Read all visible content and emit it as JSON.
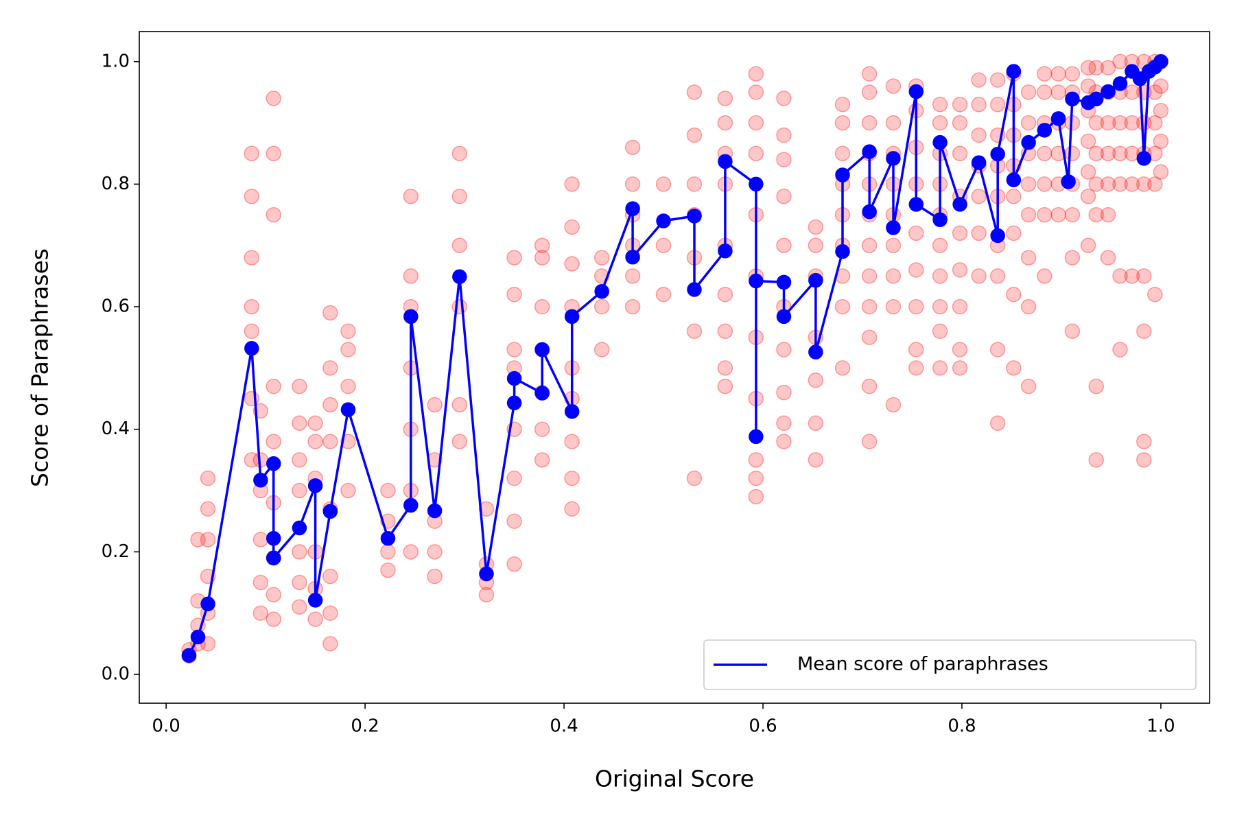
{
  "chart_data": {
    "type": "scatter",
    "x_label": "Original Score",
    "y_label": "Score of Paraphrases",
    "xlim": [
      -0.027,
      1.049
    ],
    "ylim": [
      -0.047,
      1.049
    ],
    "xticks": [
      {
        "value": 0,
        "label": "0.0"
      },
      0.2,
      0.4,
      0.6,
      0.8,
      {
        "value": 1,
        "label": "1.0"
      }
    ],
    "yticks": [
      {
        "value": 0,
        "label": "0.0"
      },
      0.2,
      0.4,
      0.6,
      0.8,
      {
        "value": 1,
        "label": "1.0"
      }
    ],
    "grid": false,
    "legend": "lower right",
    "series": [
      {
        "color": "#ff0000",
        "mode": "markers",
        "x": [
          0.023,
          0.023,
          0.032,
          0.032,
          0.032,
          0.032,
          0.042,
          0.042,
          0.042,
          0.042,
          0.042,
          0.042,
          0.086,
          0.086,
          0.086,
          0.086,
          0.086,
          0.086,
          0.086,
          0.095,
          0.095,
          0.095,
          0.095,
          0.095,
          0.095,
          0.108,
          0.108,
          0.108,
          0.108,
          0.108,
          0.108,
          0.108,
          0.108,
          0.108,
          0.134,
          0.134,
          0.134,
          0.134,
          0.134,
          0.134,
          0.134,
          0.15,
          0.15,
          0.15,
          0.15,
          0.15,
          0.15,
          0.165,
          0.165,
          0.165,
          0.165,
          0.165,
          0.165,
          0.165,
          0.165,
          0.183,
          0.183,
          0.183,
          0.183,
          0.183,
          0.223,
          0.223,
          0.223,
          0.223,
          0.246,
          0.246,
          0.246,
          0.246,
          0.246,
          0.246,
          0.246,
          0.27,
          0.27,
          0.27,
          0.27,
          0.27,
          0.295,
          0.295,
          0.295,
          0.295,
          0.295,
          0.295,
          0.322,
          0.322,
          0.322,
          0.322,
          0.35,
          0.35,
          0.35,
          0.35,
          0.35,
          0.35,
          0.35,
          0.35,
          0.378,
          0.378,
          0.378,
          0.378,
          0.378,
          0.378,
          0.378,
          0.408,
          0.408,
          0.408,
          0.408,
          0.408,
          0.408,
          0.408,
          0.408,
          0.408,
          0.438,
          0.438,
          0.438,
          0.438,
          0.469,
          0.469,
          0.469,
          0.469,
          0.469,
          0.469,
          0.5,
          0.5,
          0.5,
          0.531,
          0.531,
          0.531,
          0.531,
          0.531,
          0.531,
          0.531,
          0.562,
          0.562,
          0.562,
          0.562,
          0.562,
          0.562,
          0.562,
          0.562,
          0.562,
          0.593,
          0.593,
          0.593,
          0.593,
          0.593,
          0.593,
          0.593,
          0.593,
          0.593,
          0.593,
          0.593,
          0.621,
          0.621,
          0.621,
          0.621,
          0.621,
          0.621,
          0.621,
          0.621,
          0.621,
          0.621,
          0.653,
          0.653,
          0.653,
          0.653,
          0.653,
          0.653,
          0.653,
          0.68,
          0.68,
          0.68,
          0.68,
          0.68,
          0.68,
          0.68,
          0.68,
          0.68,
          0.707,
          0.707,
          0.707,
          0.707,
          0.707,
          0.707,
          0.707,
          0.707,
          0.707,
          0.707,
          0.707,
          0.707,
          0.731,
          0.731,
          0.731,
          0.731,
          0.731,
          0.731,
          0.731,
          0.731,
          0.731,
          0.754,
          0.754,
          0.754,
          0.754,
          0.754,
          0.754,
          0.754,
          0.754,
          0.754,
          0.778,
          0.778,
          0.778,
          0.778,
          0.778,
          0.778,
          0.778,
          0.778,
          0.778,
          0.778,
          0.798,
          0.798,
          0.798,
          0.798,
          0.798,
          0.798,
          0.798,
          0.798,
          0.798,
          0.817,
          0.817,
          0.817,
          0.817,
          0.817,
          0.817,
          0.817,
          0.836,
          0.836,
          0.836,
          0.836,
          0.836,
          0.836,
          0.836,
          0.836,
          0.836,
          0.852,
          0.852,
          0.852,
          0.852,
          0.852,
          0.852,
          0.852,
          0.852,
          0.867,
          0.867,
          0.867,
          0.867,
          0.867,
          0.867,
          0.867,
          0.867,
          0.883,
          0.883,
          0.883,
          0.883,
          0.883,
          0.883,
          0.883,
          0.897,
          0.897,
          0.897,
          0.897,
          0.897,
          0.897,
          0.911,
          0.911,
          0.911,
          0.911,
          0.911,
          0.911,
          0.911,
          0.911,
          0.927,
          0.927,
          0.927,
          0.927,
          0.927,
          0.927,
          0.927,
          0.935,
          0.935,
          0.935,
          0.935,
          0.935,
          0.935,
          0.935,
          0.935,
          0.947,
          0.947,
          0.947,
          0.947,
          0.947,
          0.947,
          0.947,
          0.959,
          0.959,
          0.959,
          0.959,
          0.959,
          0.959,
          0.959,
          0.971,
          0.971,
          0.971,
          0.971,
          0.971,
          0.971,
          0.983,
          0.983,
          0.983,
          0.983,
          0.983,
          0.983,
          0.983,
          0.983,
          0.983,
          0.994,
          0.994,
          0.994,
          0.994,
          0.994,
          0.994,
          1.0,
          1.0,
          1.0,
          1.0,
          1.0
        ],
        "values": [
          0.03,
          0.04,
          0.05,
          0.08,
          0.12,
          0.22,
          0.05,
          0.1,
          0.16,
          0.22,
          0.27,
          0.32,
          0.35,
          0.45,
          0.56,
          0.6,
          0.68,
          0.78,
          0.85,
          0.1,
          0.15,
          0.22,
          0.3,
          0.35,
          0.43,
          0.09,
          0.13,
          0.19,
          0.28,
          0.38,
          0.47,
          0.75,
          0.85,
          0.94,
          0.11,
          0.15,
          0.2,
          0.3,
          0.35,
          0.41,
          0.47,
          0.09,
          0.14,
          0.2,
          0.32,
          0.38,
          0.41,
          0.05,
          0.1,
          0.16,
          0.27,
          0.38,
          0.44,
          0.5,
          0.59,
          0.3,
          0.38,
          0.47,
          0.53,
          0.56,
          0.17,
          0.2,
          0.25,
          0.3,
          0.2,
          0.3,
          0.4,
          0.5,
          0.6,
          0.65,
          0.78,
          0.16,
          0.2,
          0.25,
          0.35,
          0.44,
          0.38,
          0.44,
          0.6,
          0.7,
          0.78,
          0.85,
          0.13,
          0.15,
          0.18,
          0.27,
          0.18,
          0.25,
          0.32,
          0.4,
          0.5,
          0.53,
          0.62,
          0.68,
          0.35,
          0.4,
          0.46,
          0.53,
          0.6,
          0.68,
          0.7,
          0.27,
          0.32,
          0.38,
          0.45,
          0.5,
          0.6,
          0.67,
          0.73,
          0.8,
          0.53,
          0.6,
          0.65,
          0.68,
          0.6,
          0.65,
          0.7,
          0.75,
          0.8,
          0.86,
          0.62,
          0.7,
          0.8,
          0.32,
          0.56,
          0.68,
          0.75,
          0.8,
          0.88,
          0.95,
          0.47,
          0.5,
          0.56,
          0.62,
          0.7,
          0.8,
          0.85,
          0.9,
          0.94,
          0.29,
          0.32,
          0.35,
          0.45,
          0.55,
          0.65,
          0.75,
          0.85,
          0.9,
          0.95,
          0.98,
          0.38,
          0.41,
          0.46,
          0.53,
          0.6,
          0.7,
          0.78,
          0.84,
          0.88,
          0.94,
          0.35,
          0.41,
          0.48,
          0.55,
          0.65,
          0.7,
          0.73,
          0.5,
          0.6,
          0.65,
          0.7,
          0.75,
          0.8,
          0.85,
          0.9,
          0.93,
          0.38,
          0.47,
          0.55,
          0.6,
          0.65,
          0.7,
          0.75,
          0.8,
          0.85,
          0.9,
          0.95,
          0.98,
          0.44,
          0.6,
          0.65,
          0.7,
          0.75,
          0.8,
          0.85,
          0.9,
          0.96,
          0.5,
          0.53,
          0.6,
          0.66,
          0.72,
          0.8,
          0.86,
          0.92,
          0.96,
          0.5,
          0.56,
          0.6,
          0.65,
          0.7,
          0.75,
          0.8,
          0.85,
          0.9,
          0.93,
          0.5,
          0.53,
          0.6,
          0.66,
          0.72,
          0.78,
          0.85,
          0.9,
          0.93,
          0.65,
          0.72,
          0.78,
          0.83,
          0.88,
          0.93,
          0.97,
          0.41,
          0.53,
          0.65,
          0.7,
          0.78,
          0.83,
          0.88,
          0.93,
          0.97,
          0.5,
          0.62,
          0.72,
          0.78,
          0.83,
          0.88,
          0.93,
          0.98,
          0.47,
          0.6,
          0.68,
          0.75,
          0.8,
          0.85,
          0.9,
          0.95,
          0.65,
          0.75,
          0.8,
          0.85,
          0.9,
          0.95,
          0.98,
          0.75,
          0.8,
          0.85,
          0.9,
          0.95,
          0.98,
          0.56,
          0.68,
          0.75,
          0.8,
          0.85,
          0.9,
          0.95,
          0.98,
          0.7,
          0.78,
          0.82,
          0.87,
          0.92,
          0.96,
          0.99,
          0.35,
          0.47,
          0.75,
          0.8,
          0.85,
          0.9,
          0.95,
          0.99,
          0.68,
          0.75,
          0.8,
          0.85,
          0.9,
          0.95,
          0.99,
          0.53,
          0.65,
          0.8,
          0.85,
          0.9,
          0.95,
          1.0,
          0.65,
          0.8,
          0.85,
          0.9,
          0.95,
          1.0,
          0.35,
          0.38,
          0.56,
          0.65,
          0.8,
          0.85,
          0.9,
          0.95,
          1.0,
          0.62,
          0.8,
          0.85,
          0.9,
          0.95,
          1.0,
          0.82,
          0.87,
          0.92,
          0.96,
          1.0
        ]
      },
      {
        "name": "Mean score of paraphrases",
        "color": "#0000ff",
        "mode": "lines+markers",
        "x": [
          0.023,
          0.032,
          0.042,
          0.086,
          0.095,
          0.108,
          0.108,
          0.108,
          0.134,
          0.15,
          0.15,
          0.165,
          0.183,
          0.223,
          0.246,
          0.246,
          0.27,
          0.295,
          0.322,
          0.35,
          0.35,
          0.378,
          0.378,
          0.408,
          0.408,
          0.438,
          0.469,
          0.469,
          0.5,
          0.531,
          0.531,
          0.562,
          0.562,
          0.593,
          0.593,
          0.593,
          0.621,
          0.621,
          0.653,
          0.653,
          0.68,
          0.68,
          0.707,
          0.707,
          0.731,
          0.731,
          0.754,
          0.754,
          0.778,
          0.778,
          0.798,
          0.817,
          0.836,
          0.836,
          0.852,
          0.852,
          0.867,
          0.883,
          0.897,
          0.907,
          0.911,
          0.927,
          0.935,
          0.947,
          0.959,
          0.971,
          0.979,
          0.983,
          0.988,
          0.994,
          1.0
        ],
        "values": [
          0.031,
          0.061,
          0.115,
          0.532,
          0.317,
          0.344,
          0.222,
          0.19,
          0.239,
          0.308,
          0.121,
          0.266,
          0.432,
          0.222,
          0.276,
          0.584,
          0.267,
          0.649,
          0.164,
          0.443,
          0.483,
          0.459,
          0.53,
          0.429,
          0.584,
          0.625,
          0.76,
          0.681,
          0.74,
          0.748,
          0.628,
          0.691,
          0.837,
          0.8,
          0.388,
          0.642,
          0.64,
          0.584,
          0.643,
          0.526,
          0.69,
          0.815,
          0.853,
          0.755,
          0.842,
          0.729,
          0.951,
          0.767,
          0.742,
          0.868,
          0.767,
          0.835,
          0.716,
          0.849,
          0.984,
          0.807,
          0.868,
          0.888,
          0.907,
          0.804,
          0.939,
          0.933,
          0.939,
          0.951,
          0.964,
          0.984,
          0.972,
          0.842,
          0.984,
          0.991,
          1.0
        ]
      }
    ]
  }
}
